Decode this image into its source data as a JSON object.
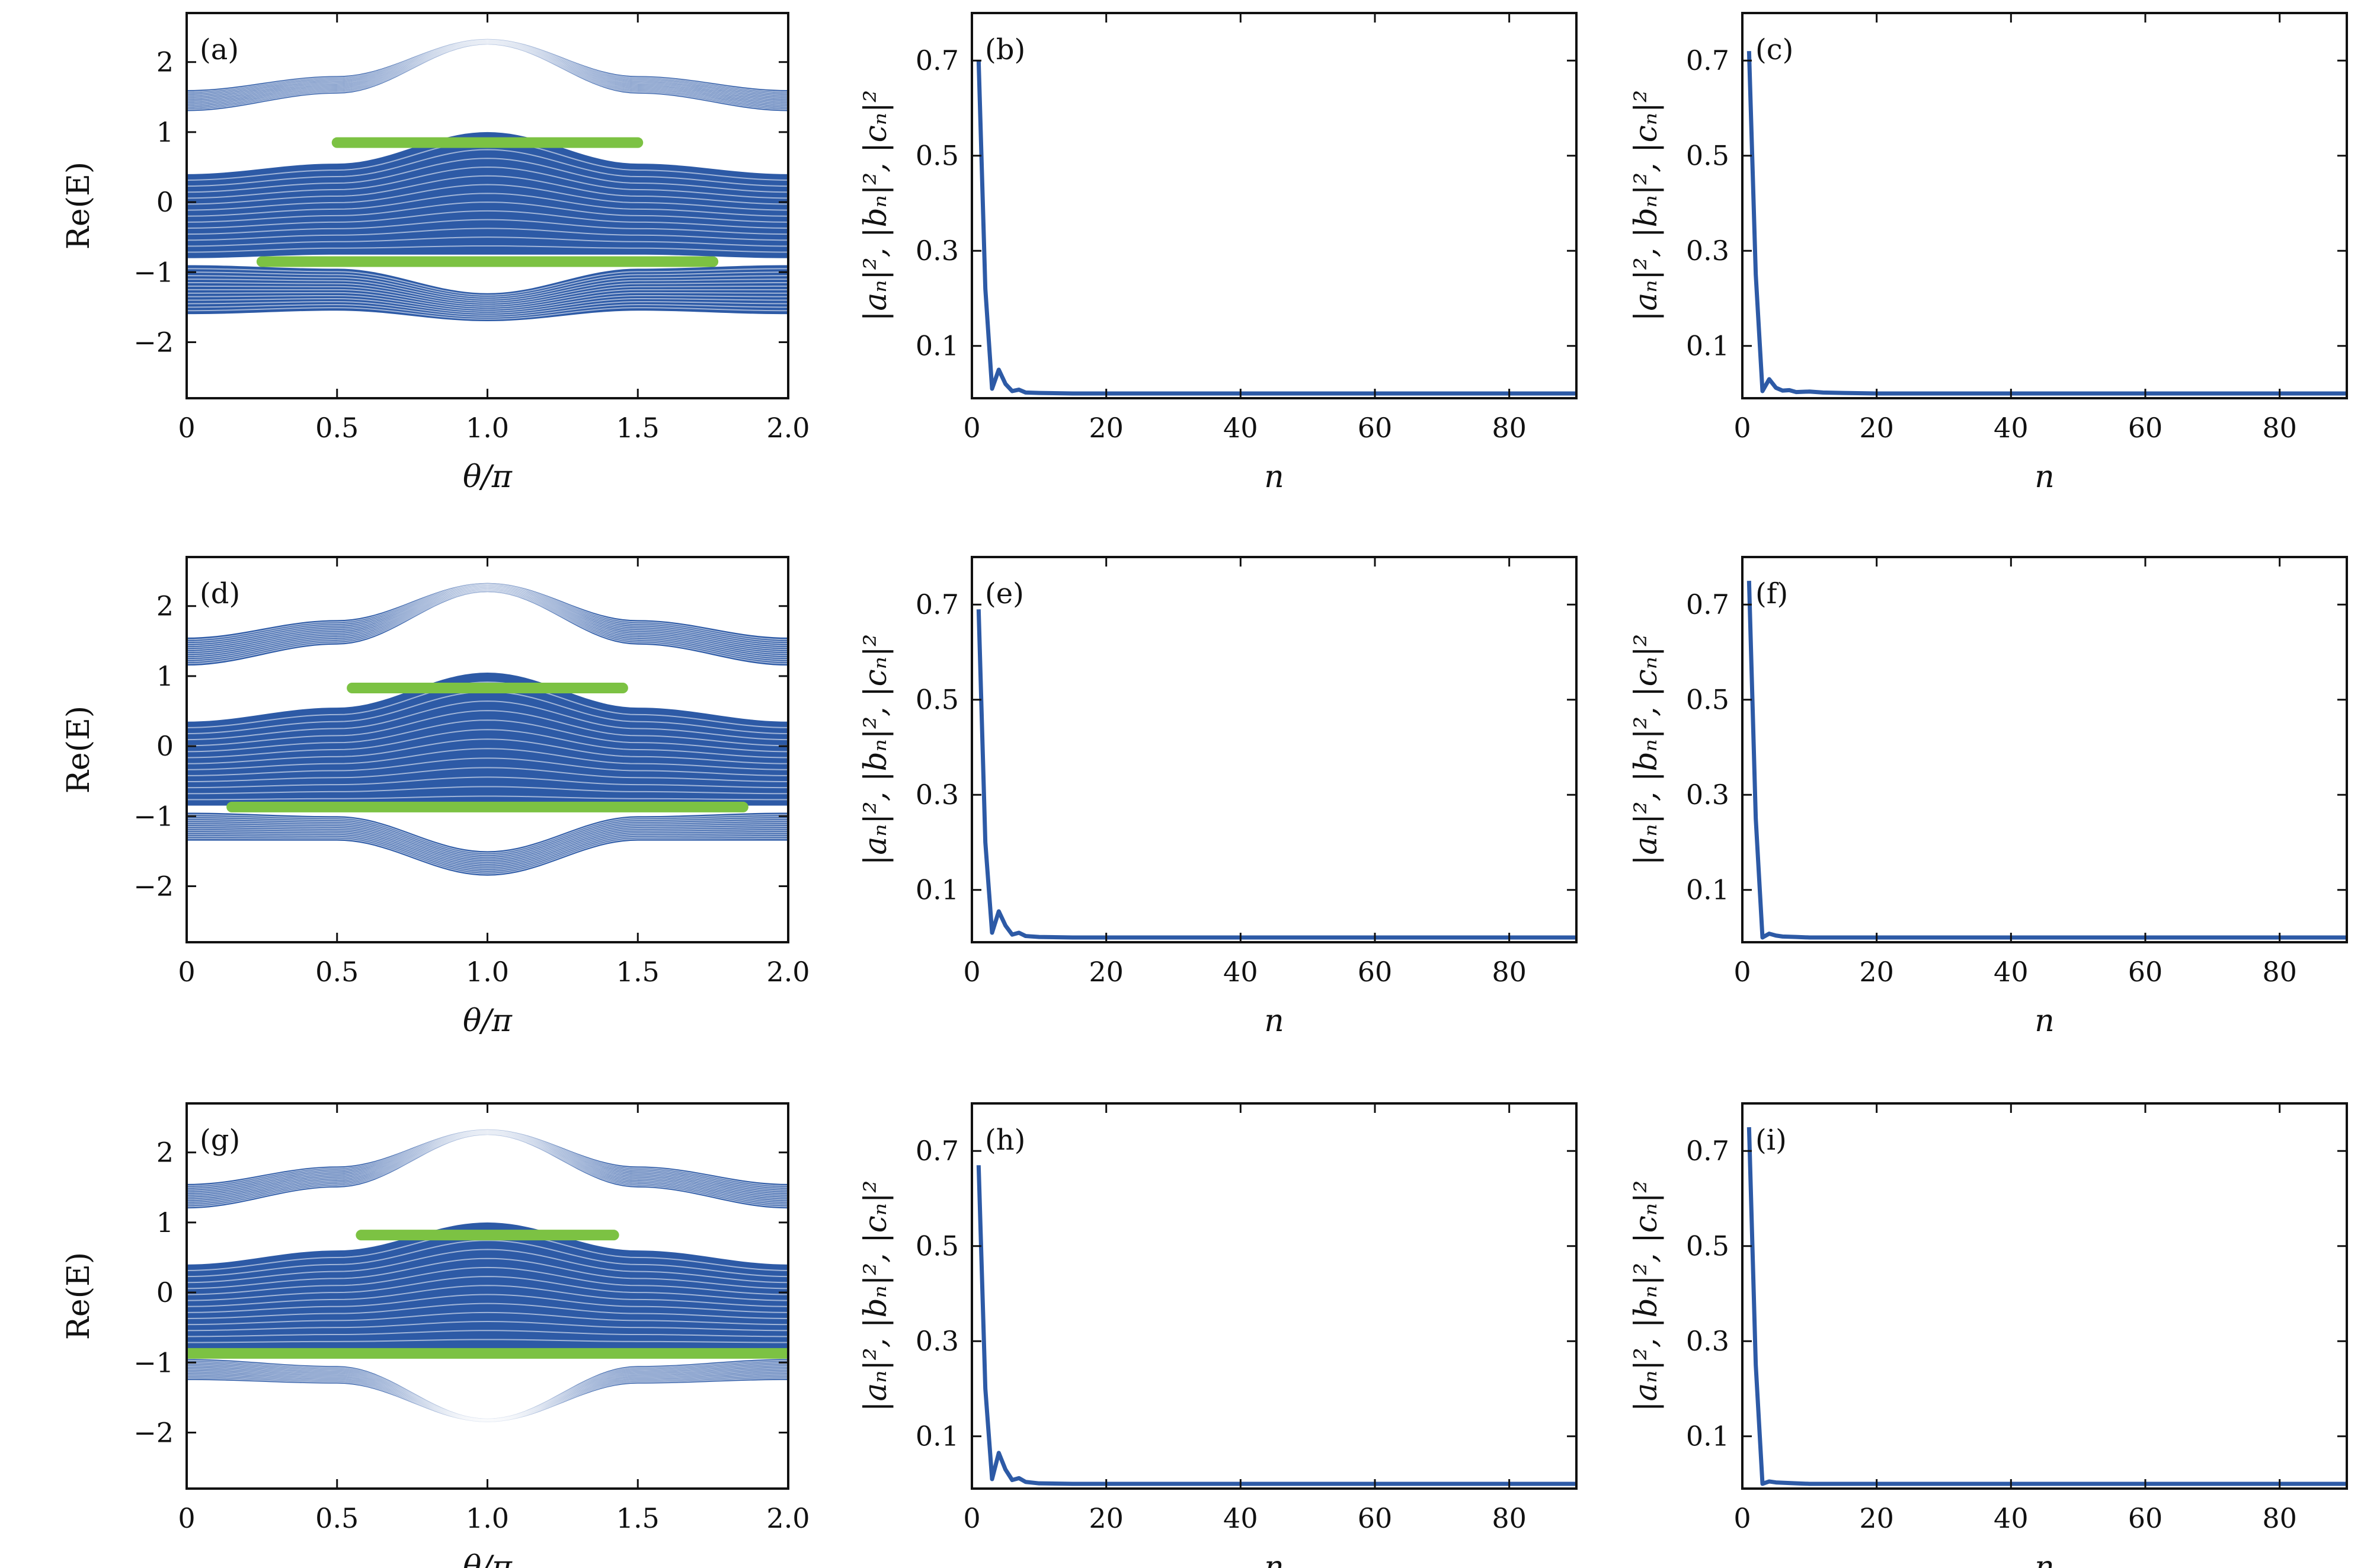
{
  "colors": {
    "band": "#2d5aa6",
    "edge_state": "#7cc243",
    "curve": "#2d5aa6",
    "frame": "#111111"
  },
  "chart_data": [
    {
      "id": "a",
      "label": "(a)",
      "type": "band-spectrum",
      "xlabel": "θ/π",
      "ylabel": "Re(E)",
      "xlim": [
        0,
        2
      ],
      "ylim": [
        -2.8,
        2.7
      ],
      "xticks": [
        "0",
        "0.5",
        "1.0",
        "1.5",
        "2.0"
      ],
      "yticks": [
        "−2",
        "−1",
        "0",
        "1",
        "2"
      ],
      "series": [
        {
          "kind": "band",
          "lower": [
            1.3,
            1.55,
            2.25,
            1.55,
            1.3
          ],
          "upper": [
            1.6,
            1.8,
            2.33,
            1.8,
            1.6
          ]
        },
        {
          "kind": "band",
          "lower": [
            -0.8,
            -0.75,
            -0.75,
            -0.75,
            -0.8
          ],
          "upper": [
            0.4,
            0.55,
            1.0,
            0.55,
            0.4
          ]
        },
        {
          "kind": "band",
          "lower": [
            -1.6,
            -1.55,
            -1.7,
            -1.55,
            -1.6
          ],
          "upper": [
            -0.9,
            -0.95,
            -1.3,
            -0.95,
            -0.9
          ]
        },
        {
          "kind": "edge",
          "x": [
            0.5,
            1.5
          ],
          "y": 0.85
        },
        {
          "kind": "edge",
          "x": [
            0.25,
            1.75
          ],
          "y": -0.85
        }
      ]
    },
    {
      "id": "b",
      "label": "(b)",
      "type": "line",
      "xlabel": "n",
      "ylabel": "|aₙ|², |bₙ|², |cₙ|²",
      "xlim": [
        0,
        90
      ],
      "ylim": [
        -0.01,
        0.8
      ],
      "xticks": [
        0,
        20,
        40,
        60,
        80
      ],
      "yticks": [
        "0.1",
        "0.3",
        "0.5",
        "0.7"
      ],
      "x": [
        1,
        2,
        3,
        4,
        5,
        6,
        7,
        8,
        10,
        15,
        20,
        40,
        60,
        80,
        90
      ],
      "y": [
        0.7,
        0.22,
        0.01,
        0.05,
        0.02,
        0.005,
        0.008,
        0.002,
        0.001,
        0,
        0,
        0,
        0,
        0,
        0
      ]
    },
    {
      "id": "c",
      "label": "(c)",
      "type": "line",
      "xlabel": "n",
      "ylabel": "|aₙ|², |bₙ|², |cₙ|²",
      "xlim": [
        0,
        90
      ],
      "ylim": [
        -0.01,
        0.8
      ],
      "xticks": [
        0,
        20,
        40,
        60,
        80
      ],
      "yticks": [
        "0.1",
        "0.3",
        "0.5",
        "0.7"
      ],
      "x": [
        1,
        2,
        3,
        4,
        5,
        6,
        7,
        8,
        10,
        12,
        15,
        20,
        40,
        60,
        80,
        90
      ],
      "y": [
        0.72,
        0.25,
        0.005,
        0.03,
        0.012,
        0.006,
        0.007,
        0.003,
        0.004,
        0.002,
        0.001,
        0,
        0,
        0,
        0,
        0
      ]
    },
    {
      "id": "d",
      "label": "(d)",
      "type": "band-spectrum",
      "xlabel": "θ/π",
      "ylabel": "Re(E)",
      "xlim": [
        0,
        2
      ],
      "ylim": [
        -2.8,
        2.7
      ],
      "xticks": [
        "0",
        "0.5",
        "1.0",
        "1.5",
        "2.0"
      ],
      "yticks": [
        "−2",
        "−1",
        "0",
        "1",
        "2"
      ],
      "series": [
        {
          "kind": "band",
          "lower": [
            1.15,
            1.45,
            2.2,
            1.45,
            1.15
          ],
          "upper": [
            1.55,
            1.8,
            2.33,
            1.8,
            1.55
          ]
        },
        {
          "kind": "band",
          "lower": [
            -0.85,
            -0.85,
            -0.85,
            -0.85,
            -0.85
          ],
          "upper": [
            0.35,
            0.55,
            1.05,
            0.55,
            0.35
          ]
        },
        {
          "kind": "band",
          "lower": [
            -1.35,
            -1.35,
            -1.85,
            -1.35,
            -1.35
          ],
          "upper": [
            -0.95,
            -1.0,
            -1.5,
            -1.0,
            -0.95
          ]
        },
        {
          "kind": "edge",
          "x": [
            0.55,
            1.45
          ],
          "y": 0.83
        },
        {
          "kind": "edge",
          "x": [
            0.15,
            1.85
          ],
          "y": -0.87
        }
      ]
    },
    {
      "id": "e",
      "label": "(e)",
      "type": "line",
      "xlabel": "n",
      "ylabel": "|aₙ|², |bₙ|², |cₙ|²",
      "xlim": [
        0,
        90
      ],
      "ylim": [
        -0.01,
        0.8
      ],
      "xticks": [
        0,
        20,
        40,
        60,
        80
      ],
      "yticks": [
        "0.1",
        "0.3",
        "0.5",
        "0.7"
      ],
      "x": [
        1,
        2,
        3,
        4,
        5,
        6,
        7,
        8,
        10,
        15,
        20,
        40,
        60,
        80,
        90
      ],
      "y": [
        0.69,
        0.2,
        0.01,
        0.055,
        0.025,
        0.006,
        0.01,
        0.003,
        0.001,
        0,
        0,
        0,
        0,
        0,
        0
      ]
    },
    {
      "id": "f",
      "label": "(f)",
      "type": "line",
      "xlabel": "n",
      "ylabel": "|aₙ|², |bₙ|², |cₙ|²",
      "xlim": [
        0,
        90
      ],
      "ylim": [
        -0.01,
        0.8
      ],
      "xticks": [
        0,
        20,
        40,
        60,
        80
      ],
      "yticks": [
        "0.1",
        "0.3",
        "0.5",
        "0.7"
      ],
      "x": [
        1,
        2,
        3,
        4,
        5,
        6,
        8,
        10,
        20,
        40,
        60,
        80,
        90
      ],
      "y": [
        0.75,
        0.25,
        0.0,
        0.008,
        0.004,
        0.002,
        0.001,
        0,
        0,
        0,
        0,
        0,
        0
      ]
    },
    {
      "id": "g",
      "label": "(g)",
      "type": "band-spectrum",
      "xlabel": "θ/π",
      "ylabel": "Re(E)",
      "xlim": [
        0,
        2
      ],
      "ylim": [
        -2.8,
        2.7
      ],
      "xticks": [
        "0",
        "0.5",
        "1.0",
        "1.5",
        "2.0"
      ],
      "yticks": [
        "−2",
        "−1",
        "0",
        "1",
        "2"
      ],
      "series": [
        {
          "kind": "band",
          "lower": [
            1.2,
            1.5,
            2.25,
            1.5,
            1.2
          ],
          "upper": [
            1.55,
            1.8,
            2.33,
            1.8,
            1.55
          ]
        },
        {
          "kind": "band",
          "lower": [
            -0.8,
            -0.8,
            -0.8,
            -0.8,
            -0.8
          ],
          "upper": [
            0.4,
            0.6,
            1.0,
            0.6,
            0.4
          ]
        },
        {
          "kind": "band",
          "lower": [
            -1.25,
            -1.3,
            -1.85,
            -1.3,
            -1.25
          ],
          "upper": [
            -0.95,
            -1.05,
            -1.8,
            -1.05,
            -0.95
          ]
        },
        {
          "kind": "edge",
          "x": [
            0.58,
            1.42
          ],
          "y": 0.82
        },
        {
          "kind": "edge",
          "x": [
            0.0,
            2.0
          ],
          "y": -0.87
        }
      ]
    },
    {
      "id": "h",
      "label": "(h)",
      "type": "line",
      "xlabel": "n",
      "ylabel": "|aₙ|², |bₙ|², |cₙ|²",
      "xlim": [
        0,
        90
      ],
      "ylim": [
        -0.01,
        0.8
      ],
      "xticks": [
        0,
        20,
        40,
        60,
        80
      ],
      "yticks": [
        "0.1",
        "0.3",
        "0.5",
        "0.7"
      ],
      "x": [
        1,
        2,
        3,
        4,
        5,
        6,
        7,
        8,
        10,
        15,
        20,
        40,
        60,
        80,
        90
      ],
      "y": [
        0.67,
        0.2,
        0.01,
        0.065,
        0.03,
        0.008,
        0.012,
        0.004,
        0.001,
        0,
        0,
        0,
        0,
        0,
        0
      ]
    },
    {
      "id": "i",
      "label": "(i)",
      "type": "line",
      "xlabel": "n",
      "ylabel": "|aₙ|², |bₙ|², |cₙ|²",
      "xlim": [
        0,
        90
      ],
      "ylim": [
        -0.01,
        0.8
      ],
      "xticks": [
        0,
        20,
        40,
        60,
        80
      ],
      "yticks": [
        "0.1",
        "0.3",
        "0.5",
        "0.7"
      ],
      "x": [
        1,
        2,
        3,
        4,
        5,
        8,
        10,
        20,
        40,
        60,
        80,
        90
      ],
      "y": [
        0.75,
        0.25,
        0.0,
        0.005,
        0.003,
        0.001,
        0,
        0,
        0,
        0,
        0,
        0
      ]
    }
  ]
}
